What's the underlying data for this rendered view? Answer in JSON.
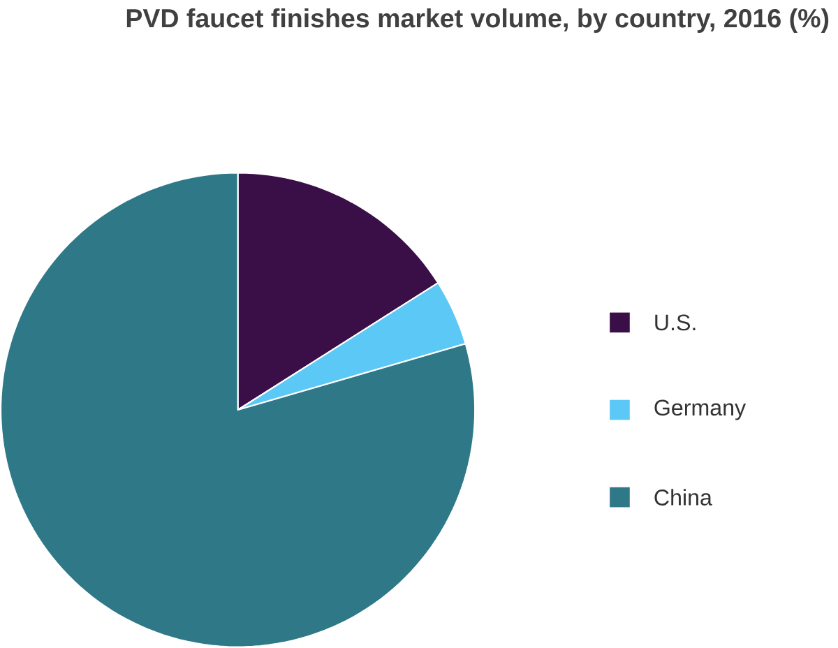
{
  "chart_data": {
    "type": "pie",
    "title": "PVD faucet finishes market volume, by country, 2016 (%)",
    "categories": [
      "U.S.",
      "Germany",
      "China"
    ],
    "values": [
      16,
      4.5,
      79.5
    ],
    "colors": [
      "#3a0f47",
      "#5bc8f5",
      "#2e7888"
    ],
    "legend": "right"
  }
}
